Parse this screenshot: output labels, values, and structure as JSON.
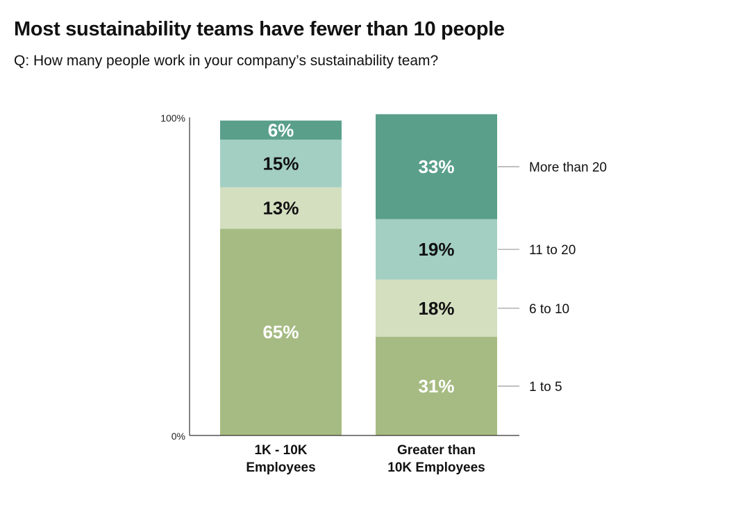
{
  "header": {
    "title": "Most sustainability teams have fewer than 10 people",
    "subtitle": "Q: How many people work in your company’s sustainability team?"
  },
  "chart_data": {
    "type": "bar",
    "stacked": true,
    "categories": [
      [
        "1K - 10K",
        "Employees"
      ],
      [
        "Greater than",
        "10K Employees"
      ]
    ],
    "series": [
      {
        "name": "1 to 5",
        "values": [
          65,
          31
        ],
        "color": "#a6bb83",
        "label_color": "#ffffff"
      },
      {
        "name": "6 to 10",
        "values": [
          13,
          18
        ],
        "color": "#d4dfc0",
        "label_color": "#111111"
      },
      {
        "name": "11 to 20",
        "values": [
          15,
          19
        ],
        "color": "#a3cfc2",
        "label_color": "#111111"
      },
      {
        "name": "More than 20",
        "values": [
          6,
          33
        ],
        "color": "#5a9f8a",
        "label_color": "#ffffff"
      }
    ],
    "data_labels": [
      [
        "65%",
        "13%",
        "15%",
        "6%"
      ],
      [
        "31%",
        "18%",
        "19%",
        "33%"
      ]
    ],
    "ytick_labels": [
      "0%",
      "100%"
    ],
    "ylim": [
      0,
      100
    ],
    "legend": "right"
  }
}
